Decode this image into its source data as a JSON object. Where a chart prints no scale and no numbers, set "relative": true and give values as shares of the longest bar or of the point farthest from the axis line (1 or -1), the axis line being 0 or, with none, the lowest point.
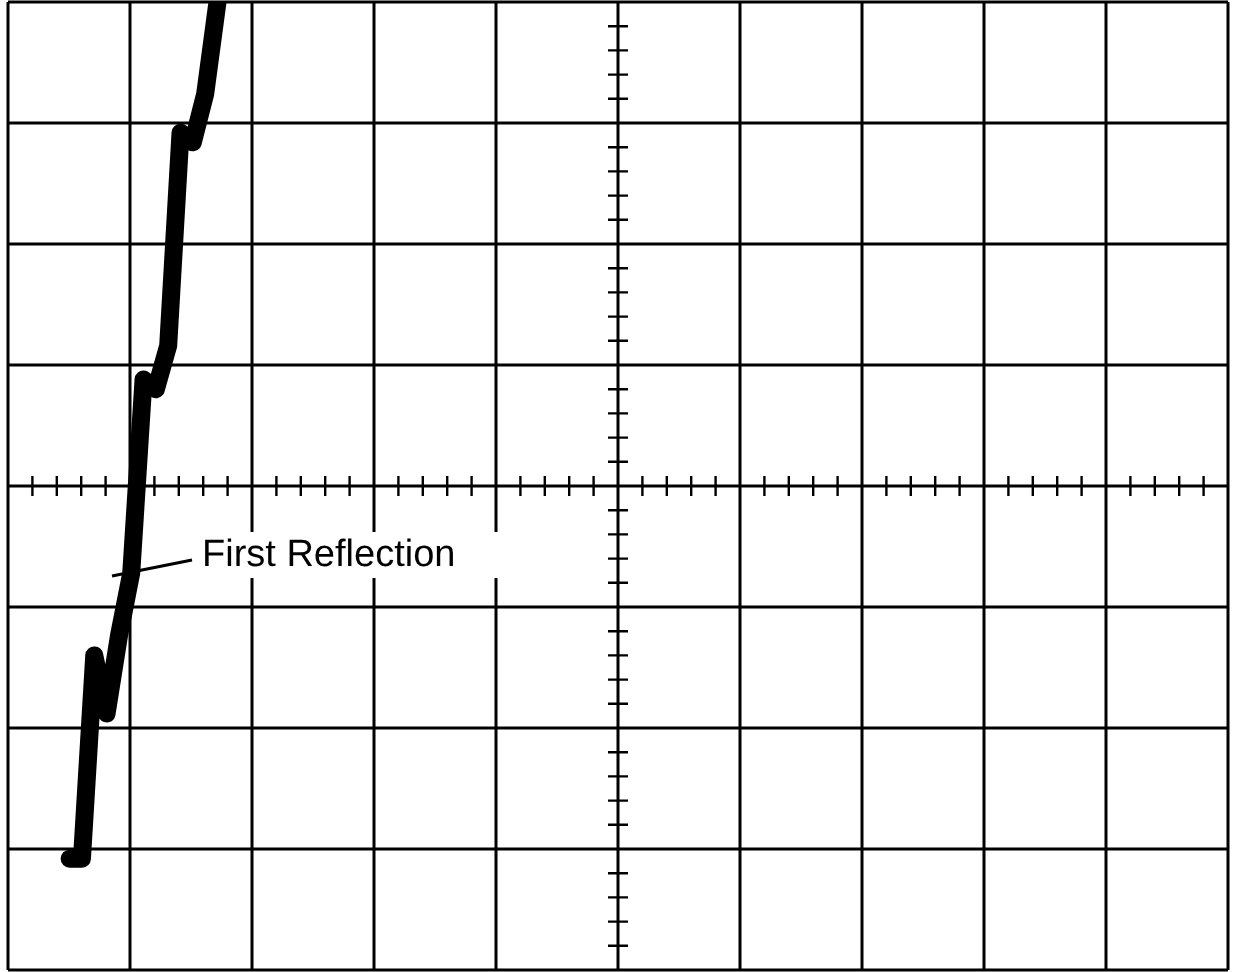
{
  "chart_data": {
    "type": "line",
    "relative": true,
    "categories": [
      null,
      null,
      null,
      null,
      null,
      null,
      null,
      null,
      null,
      null,
      null,
      null,
      null,
      null,
      null,
      null,
      null,
      null,
      null,
      null,
      null,
      null,
      null,
      null,
      null,
      null,
      null,
      null,
      null,
      null,
      null,
      null,
      null,
      null,
      null,
      null,
      null,
      null,
      null,
      null,
      null,
      null,
      null,
      null,
      null,
      null,
      null,
      null,
      null,
      null,
      null,
      null,
      null,
      null,
      null,
      null,
      null,
      null,
      null,
      null,
      null,
      null,
      null,
      null,
      null,
      null,
      null,
      null,
      null,
      null,
      null,
      null,
      null,
      null,
      null,
      null,
      null,
      null,
      null,
      null,
      null,
      null,
      null,
      null,
      null,
      null,
      null,
      null,
      null,
      null,
      null,
      null,
      null,
      null,
      null,
      null,
      null,
      null,
      null,
      null
    ],
    "series": [
      {
        "color": "#000000",
        "values": [
          null,
          null,
          null,
          null,
          null,
          -0.77,
          -0.77,
          -0.35,
          -0.47,
          -0.31,
          -0.18,
          0.22,
          0.2,
          0.29,
          0.73,
          0.71,
          0.81,
          1,
          null,
          null,
          null,
          null,
          null,
          null,
          null,
          null,
          null,
          null,
          null,
          null,
          null,
          null,
          null,
          null,
          null,
          null,
          null,
          null,
          null,
          null,
          null,
          null,
          null,
          null,
          null,
          null,
          null,
          null,
          null,
          null,
          null,
          null,
          null,
          null,
          null,
          null,
          null,
          null,
          null,
          null,
          null,
          null,
          null,
          null,
          null,
          null,
          null,
          null,
          null,
          null,
          null,
          null,
          null,
          null,
          null,
          null,
          null,
          null,
          null,
          null,
          null,
          null,
          null,
          null,
          null,
          null,
          null,
          null,
          null,
          null,
          null,
          null,
          null,
          null,
          null,
          null,
          null,
          null,
          null,
          null
        ]
      }
    ],
    "tick_labels": false,
    "grid": true,
    "marker": "none",
    "line_style": "solid",
    "annotations": [
      "First Reflection"
    ]
  }
}
